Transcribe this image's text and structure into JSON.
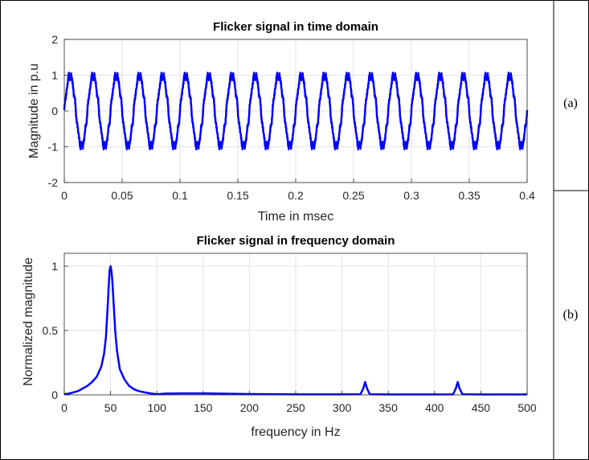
{
  "chart_data": [
    {
      "type": "line",
      "title": "Flicker signal in time domain",
      "xlabel": "Time in msec",
      "ylabel": "Magnitude in p.u",
      "xlim": [
        0,
        0.4
      ],
      "ylim": [
        -2,
        2
      ],
      "xticks": [
        "0",
        "0.05",
        "0.1",
        "0.15",
        "0.2",
        "0.25",
        "0.3",
        "0.35",
        "0.4"
      ],
      "yticks": [
        "-2",
        "-1",
        "0",
        "1",
        "2"
      ],
      "grid": true,
      "series": [
        {
          "color": "#0000ff",
          "waveform": "sinusoid with small ripple",
          "amplitude": 1.05,
          "cycles": 20,
          "x_range": [
            0,
            0.4
          ]
        }
      ]
    },
    {
      "type": "line",
      "title": "Flicker signal in frequency domain",
      "xlabel": "frequency in Hz",
      "ylabel": "Normalized magnitude",
      "xlim": [
        0,
        500
      ],
      "ylim": [
        0,
        1.1
      ],
      "xticks": [
        "0",
        "50",
        "100",
        "150",
        "200",
        "250",
        "300",
        "350",
        "400",
        "450",
        "500"
      ],
      "yticks": [
        "0",
        "0.5",
        "1"
      ],
      "grid": true,
      "series": [
        {
          "color": "#0000ff",
          "x": [
            0,
            5,
            10,
            15,
            20,
            25,
            30,
            35,
            40,
            43,
            45,
            47,
            48,
            49,
            50,
            51,
            52,
            53,
            55,
            57,
            60,
            65,
            70,
            75,
            80,
            90,
            100,
            110,
            130,
            150,
            200,
            250,
            300,
            320,
            323,
            325,
            327,
            330,
            350,
            400,
            420,
            423,
            425,
            427,
            430,
            450,
            500
          ],
          "y": [
            0.005,
            0.01,
            0.02,
            0.03,
            0.05,
            0.07,
            0.1,
            0.14,
            0.22,
            0.32,
            0.45,
            0.7,
            0.85,
            0.97,
            1.0,
            0.96,
            0.88,
            0.75,
            0.5,
            0.34,
            0.2,
            0.12,
            0.07,
            0.045,
            0.03,
            0.015,
            0.005,
            0.01,
            0.012,
            0.012,
            0.006,
            0.004,
            0.004,
            0.005,
            0.05,
            0.1,
            0.05,
            0.005,
            0.003,
            0.003,
            0.004,
            0.05,
            0.1,
            0.05,
            0.005,
            0.003,
            0.003
          ]
        }
      ]
    }
  ],
  "panels": [
    "(a)",
    "(b)"
  ]
}
